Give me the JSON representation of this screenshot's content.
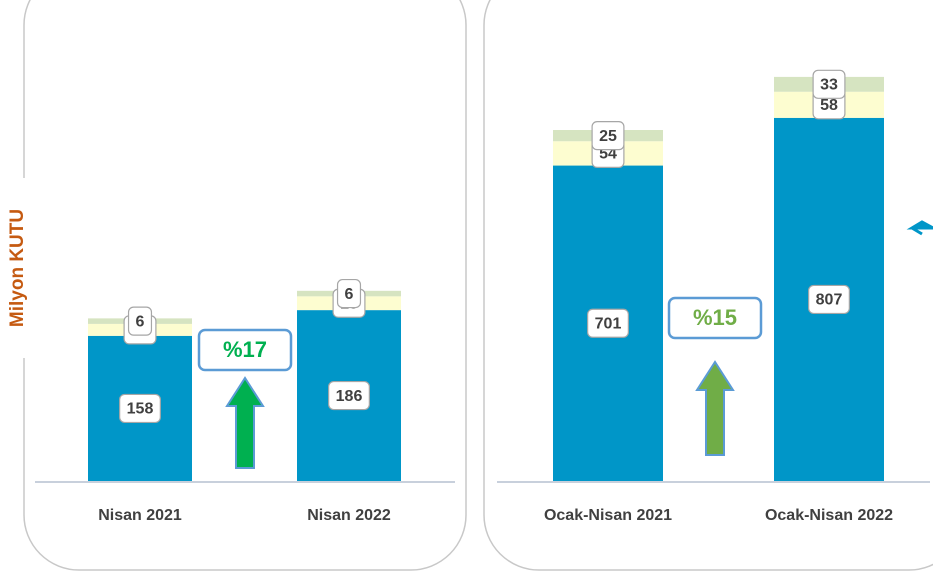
{
  "chart_data": [
    {
      "type": "bar",
      "stacked": true,
      "y_label": "Milyon KUTU",
      "categories": [
        "Nisan 2021",
        "Nisan 2022"
      ],
      "series": [
        {
          "color": "#0096c8",
          "values": [
            158,
            186
          ]
        },
        {
          "color": "#fdfdd0",
          "values": [
            13,
            15
          ]
        },
        {
          "color": "#d6e4c1",
          "values": [
            6,
            6
          ]
        }
      ],
      "ylim": [
        0,
        480
      ],
      "annotation": {
        "text": "%17",
        "color": "#00b050",
        "arrow_color": "#00b050"
      }
    },
    {
      "type": "bar",
      "stacked": true,
      "categories": [
        "Ocak-Nisan  2021",
        "Ocak-Nisan  2022"
      ],
      "series": [
        {
          "color": "#0096c8",
          "values": [
            701,
            807
          ]
        },
        {
          "color": "#fdfdd0",
          "values": [
            54,
            58
          ]
        },
        {
          "color": "#d6e4c1",
          "values": [
            25,
            33
          ]
        }
      ],
      "ylim": [
        0,
        980
      ],
      "annotation": {
        "text": "%15",
        "color": "#70ad47",
        "arrow_color": "#70ad47"
      }
    }
  ]
}
